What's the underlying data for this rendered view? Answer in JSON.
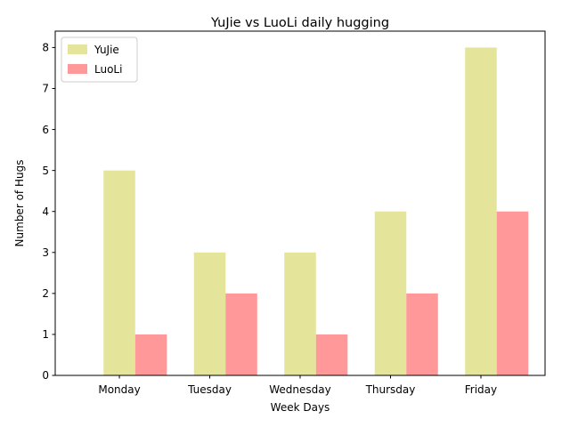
{
  "chart_data": {
    "type": "bar",
    "title": "YuJie vs LuoLi daily hugging",
    "xlabel": "Week Days",
    "ylabel": "Number of Hugs",
    "categories": [
      "Monday",
      "Tuesday",
      "Wednesday",
      "Thursday",
      "Friday"
    ],
    "series": [
      {
        "name": "YuJie",
        "values": [
          5,
          3,
          3,
          4,
          8
        ],
        "color": "#e4e59a"
      },
      {
        "name": "LuoLi",
        "values": [
          1,
          2,
          1,
          2,
          4
        ],
        "color": "#ff9999"
      }
    ],
    "ylim": [
      0,
      8.4
    ],
    "yticks": [
      0,
      1,
      2,
      3,
      4,
      5,
      6,
      7,
      8
    ],
    "grid": false,
    "legend_position": "top-left"
  }
}
